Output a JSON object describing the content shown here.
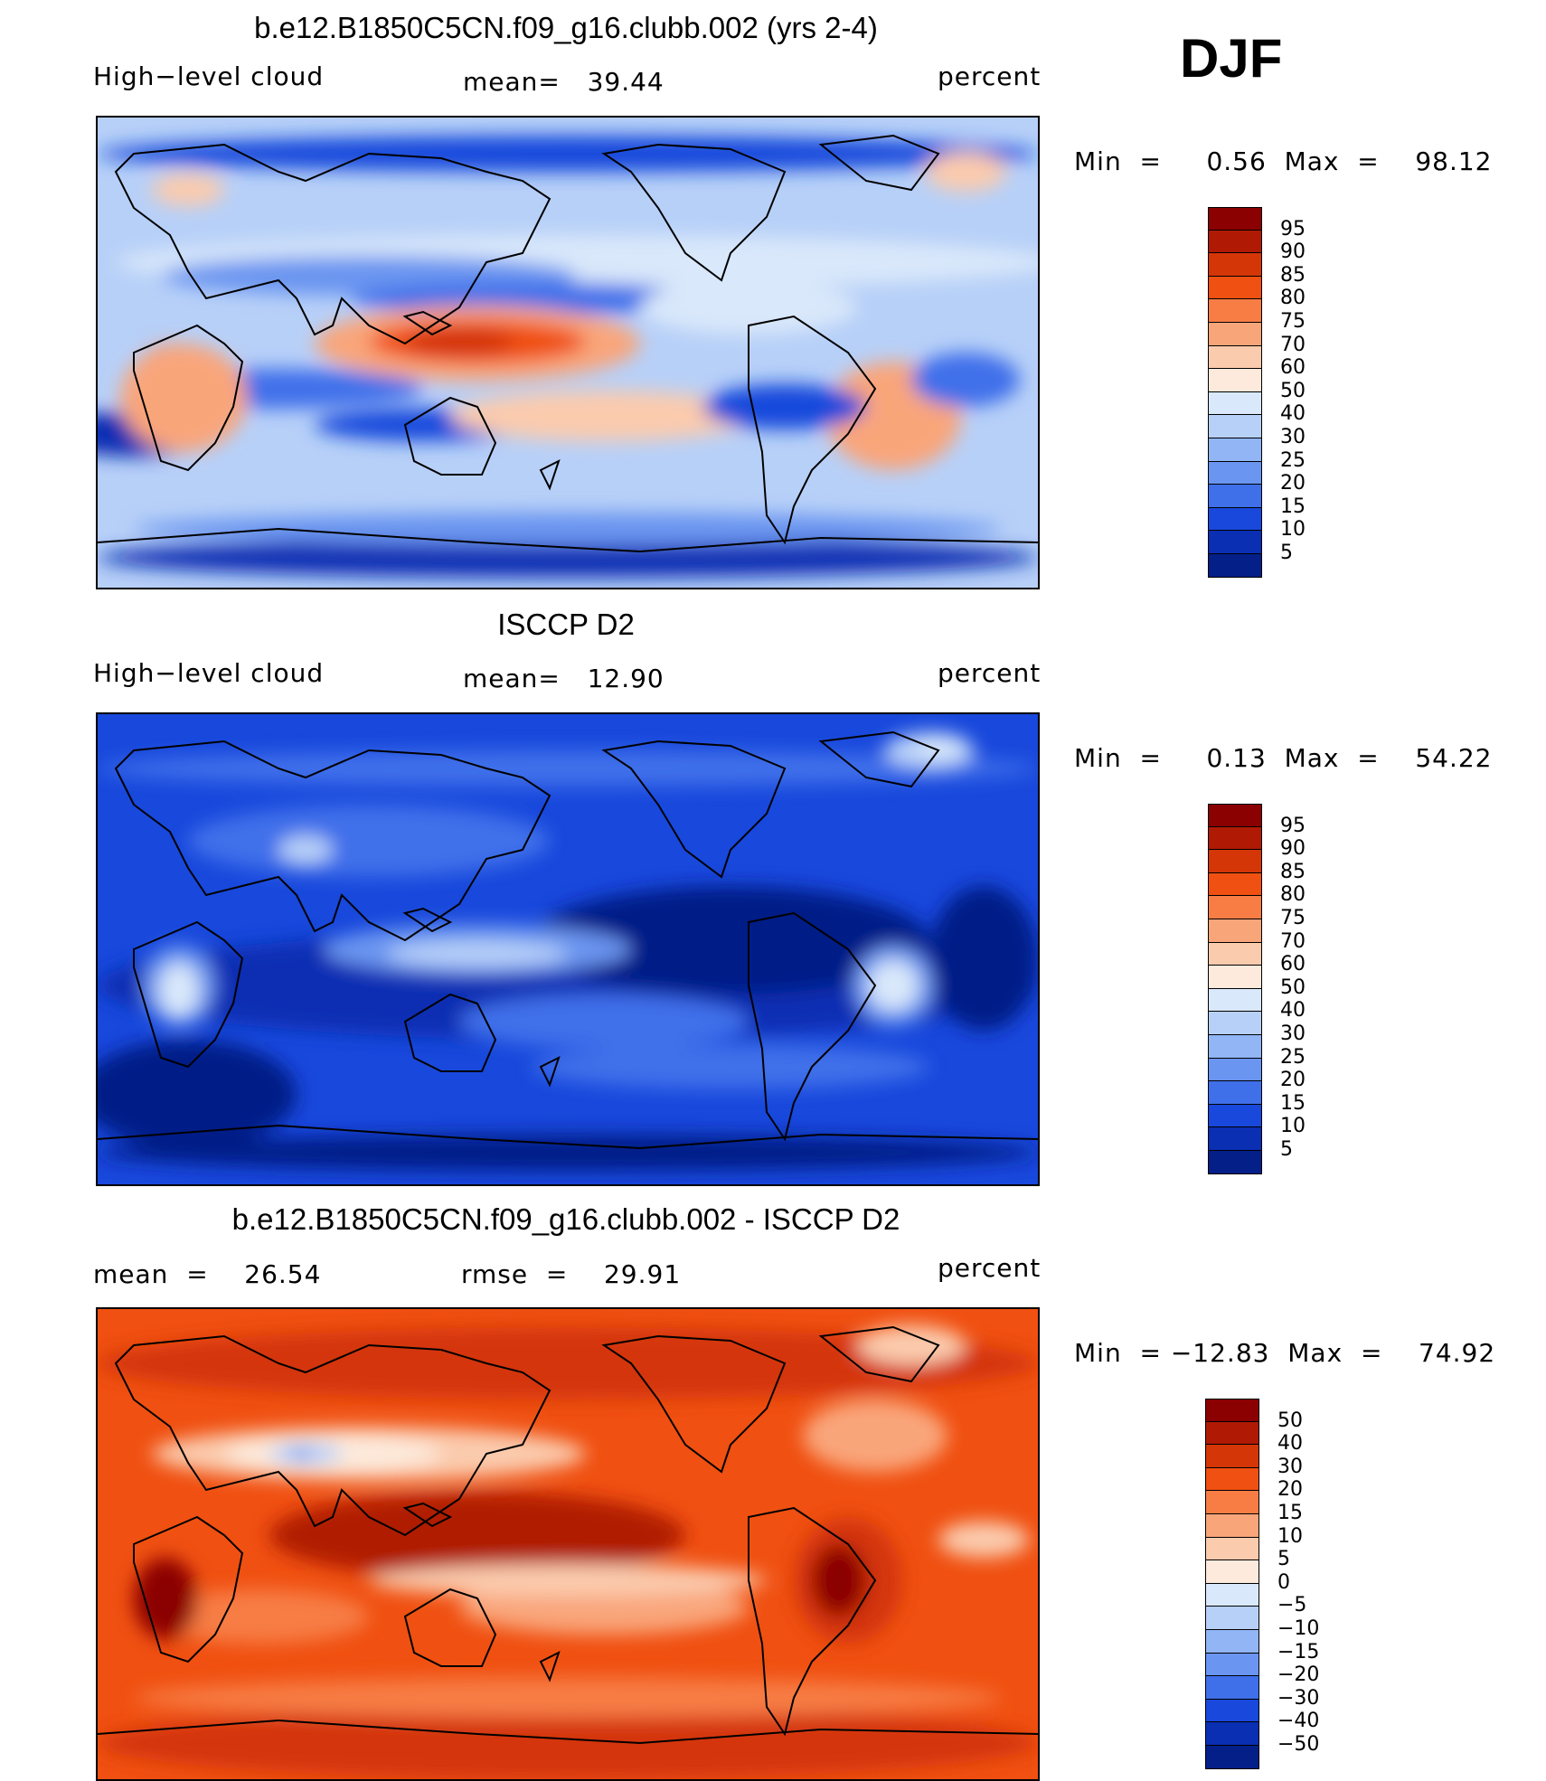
{
  "season": "DJF",
  "panels": [
    {
      "title": "b.e12.B1850C5CN.f09_g16.clubb.002 (yrs 2-4)",
      "left_label": "High−level cloud",
      "center_label": "mean=   39.44",
      "right_label": "percent",
      "minmax": "Min  =     0.56  Max  =    98.12",
      "colorbar": {
        "labels": [
          "95",
          "90",
          "85",
          "80",
          "75",
          "70",
          "60",
          "50",
          "40",
          "30",
          "25",
          "20",
          "15",
          "10",
          "5"
        ],
        "colors": [
          "#8b0000",
          "#b01a05",
          "#d43608",
          "#f05011",
          "#f77d45",
          "#f9a57a",
          "#fbcbad",
          "#fdeadc",
          "#d9e8fa",
          "#b7d0f8",
          "#91b5f5",
          "#6a95f0",
          "#3f70ea",
          "#1848dc",
          "#0a2fb3",
          "#041f87"
        ]
      },
      "map_theme": "model"
    },
    {
      "title": "ISCCP D2",
      "left_label": "High−level cloud",
      "center_label": "mean=   12.90",
      "right_label": "percent",
      "minmax": "Min  =     0.13  Max  =    54.22",
      "colorbar": {
        "labels": [
          "95",
          "90",
          "85",
          "80",
          "75",
          "70",
          "60",
          "50",
          "40",
          "30",
          "25",
          "20",
          "15",
          "10",
          "5"
        ],
        "colors": [
          "#8b0000",
          "#b01a05",
          "#d43608",
          "#f05011",
          "#f77d45",
          "#f9a57a",
          "#fbcbad",
          "#fdeadc",
          "#d9e8fa",
          "#b7d0f8",
          "#91b5f5",
          "#6a95f0",
          "#3f70ea",
          "#1848dc",
          "#0a2fb3",
          "#041f87"
        ]
      },
      "map_theme": "obs"
    },
    {
      "title": "b.e12.B1850C5CN.f09_g16.clubb.002 - ISCCP D2",
      "left_label": "mean  =    26.54",
      "center_label": "rmse  =    29.91",
      "right_label": "percent",
      "minmax": "Min  = −12.83  Max  =    74.92",
      "colorbar": {
        "labels": [
          "50",
          "40",
          "30",
          "20",
          "15",
          "10",
          "5",
          "0",
          "−5",
          "−10",
          "−15",
          "−20",
          "−30",
          "−40",
          "−50"
        ],
        "colors": [
          "#8b0000",
          "#b01a05",
          "#d43608",
          "#f05011",
          "#f77d45",
          "#f9a57a",
          "#fbcbad",
          "#fdeadc",
          "#d9e8fa",
          "#b7d0f8",
          "#91b5f5",
          "#6a95f0",
          "#3f70ea",
          "#1848dc",
          "#0a2fb3",
          "#041f87"
        ]
      },
      "map_theme": "diff"
    }
  ]
}
